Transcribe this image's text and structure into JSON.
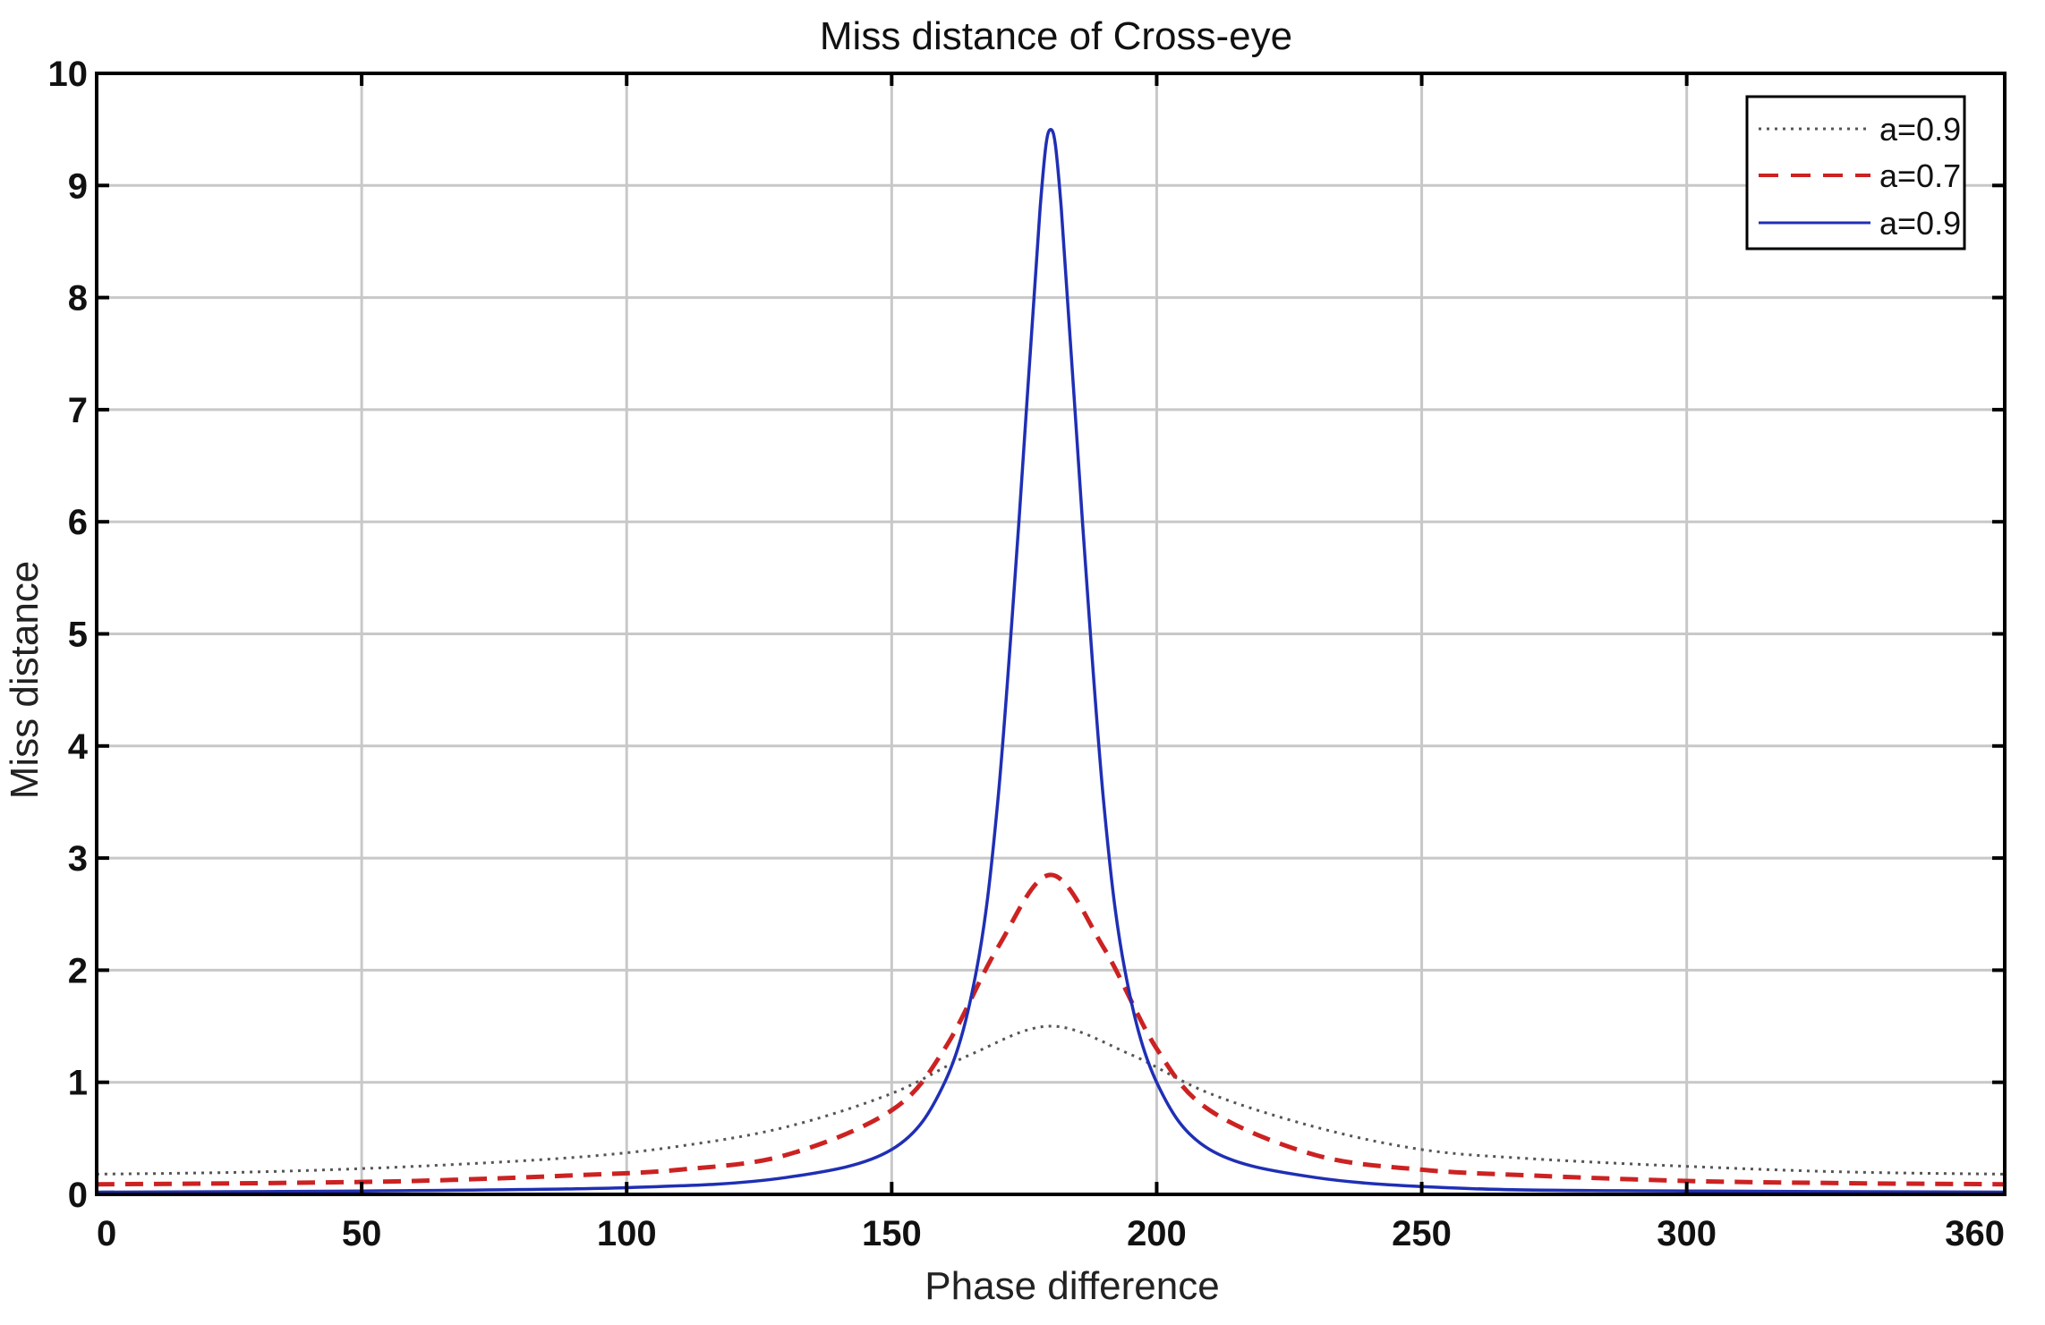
{
  "chart_data": {
    "type": "line",
    "title": "Miss distance of Cross-eye",
    "xlabel": "Phase difference",
    "ylabel": "Miss distance",
    "xlim": [
      0,
      360
    ],
    "ylim": [
      0,
      10
    ],
    "xticks": [
      "0",
      "50",
      "100",
      "150",
      "200",
      "250",
      "300",
      "360"
    ],
    "yticks": [
      "0",
      "1",
      "2",
      "3",
      "4",
      "5",
      "6",
      "7",
      "8",
      "9",
      "10"
    ],
    "grid": true,
    "legend_position": "top-right",
    "series": [
      {
        "name": "a=0.9",
        "style": "dotted",
        "color": "#555555",
        "x": [
          0,
          30,
          60,
          90,
          110,
          130,
          150,
          165,
          180,
          195,
          210,
          230,
          250,
          270,
          300,
          330,
          360
        ],
        "y": [
          0.18,
          0.2,
          0.25,
          0.33,
          0.43,
          0.6,
          0.9,
          1.25,
          1.5,
          1.25,
          0.9,
          0.6,
          0.4,
          0.32,
          0.25,
          0.2,
          0.18
        ]
      },
      {
        "name": "a=0.7",
        "style": "dashed",
        "color": "#cc2222",
        "x": [
          0,
          30,
          60,
          90,
          110,
          130,
          150,
          160,
          170,
          180,
          190,
          200,
          210,
          230,
          250,
          270,
          300,
          330,
          360
        ],
        "y": [
          0.09,
          0.1,
          0.12,
          0.17,
          0.22,
          0.35,
          0.75,
          1.3,
          2.2,
          2.85,
          2.2,
          1.3,
          0.75,
          0.35,
          0.22,
          0.17,
          0.12,
          0.1,
          0.09
        ]
      },
      {
        "name": "a=0.9",
        "style": "solid",
        "color": "#1f2fb5",
        "x": [
          0,
          50,
          100,
          130,
          150,
          160,
          166,
          170,
          174,
          178,
          180,
          182,
          186,
          190,
          194,
          200,
          210,
          230,
          260,
          300,
          360
        ],
        "y": [
          0.02,
          0.03,
          0.06,
          0.15,
          0.4,
          1.0,
          2.0,
          3.5,
          6.0,
          8.8,
          9.5,
          8.8,
          6.0,
          3.5,
          2.0,
          1.0,
          0.4,
          0.15,
          0.05,
          0.03,
          0.02
        ]
      }
    ]
  }
}
